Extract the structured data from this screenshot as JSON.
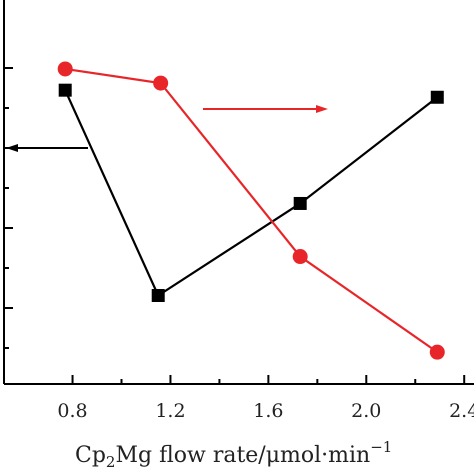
{
  "chart_data": {
    "type": "line",
    "title": "",
    "xlabel": {
      "prefix": "Cp",
      "sub": "2",
      "suffix": "Mg flow rate/μmol·min",
      "sup": "−1"
    },
    "ylabel": "",
    "xlim": [
      0.52,
      2.44
    ],
    "x_ticks": [
      0.8,
      1.2,
      1.6,
      2.0,
      2.4
    ],
    "x_tick_labels": [
      "0.8",
      "1.2",
      "1.6",
      "2.0",
      "2.4"
    ],
    "grid": false,
    "series": [
      {
        "color": "#000000",
        "marker": "square",
        "axis": "left",
        "x": [
          0.77,
          1.15,
          1.73,
          2.29
        ],
        "y": [
          0.83,
          0.25,
          0.51,
          0.81
        ]
      },
      {
        "color": "#e8262a",
        "marker": "circle",
        "axis": "right",
        "x": [
          0.77,
          1.16,
          1.73,
          2.29
        ],
        "y": [
          0.89,
          0.85,
          0.36,
          0.09
        ]
      }
    ],
    "annotations": [
      {
        "kind": "arrow",
        "direction": "left",
        "meaning": "black series on left axis",
        "color": "#000000"
      },
      {
        "kind": "arrow",
        "direction": "right",
        "meaning": "red series on right axis",
        "color": "#e8262a"
      }
    ]
  }
}
